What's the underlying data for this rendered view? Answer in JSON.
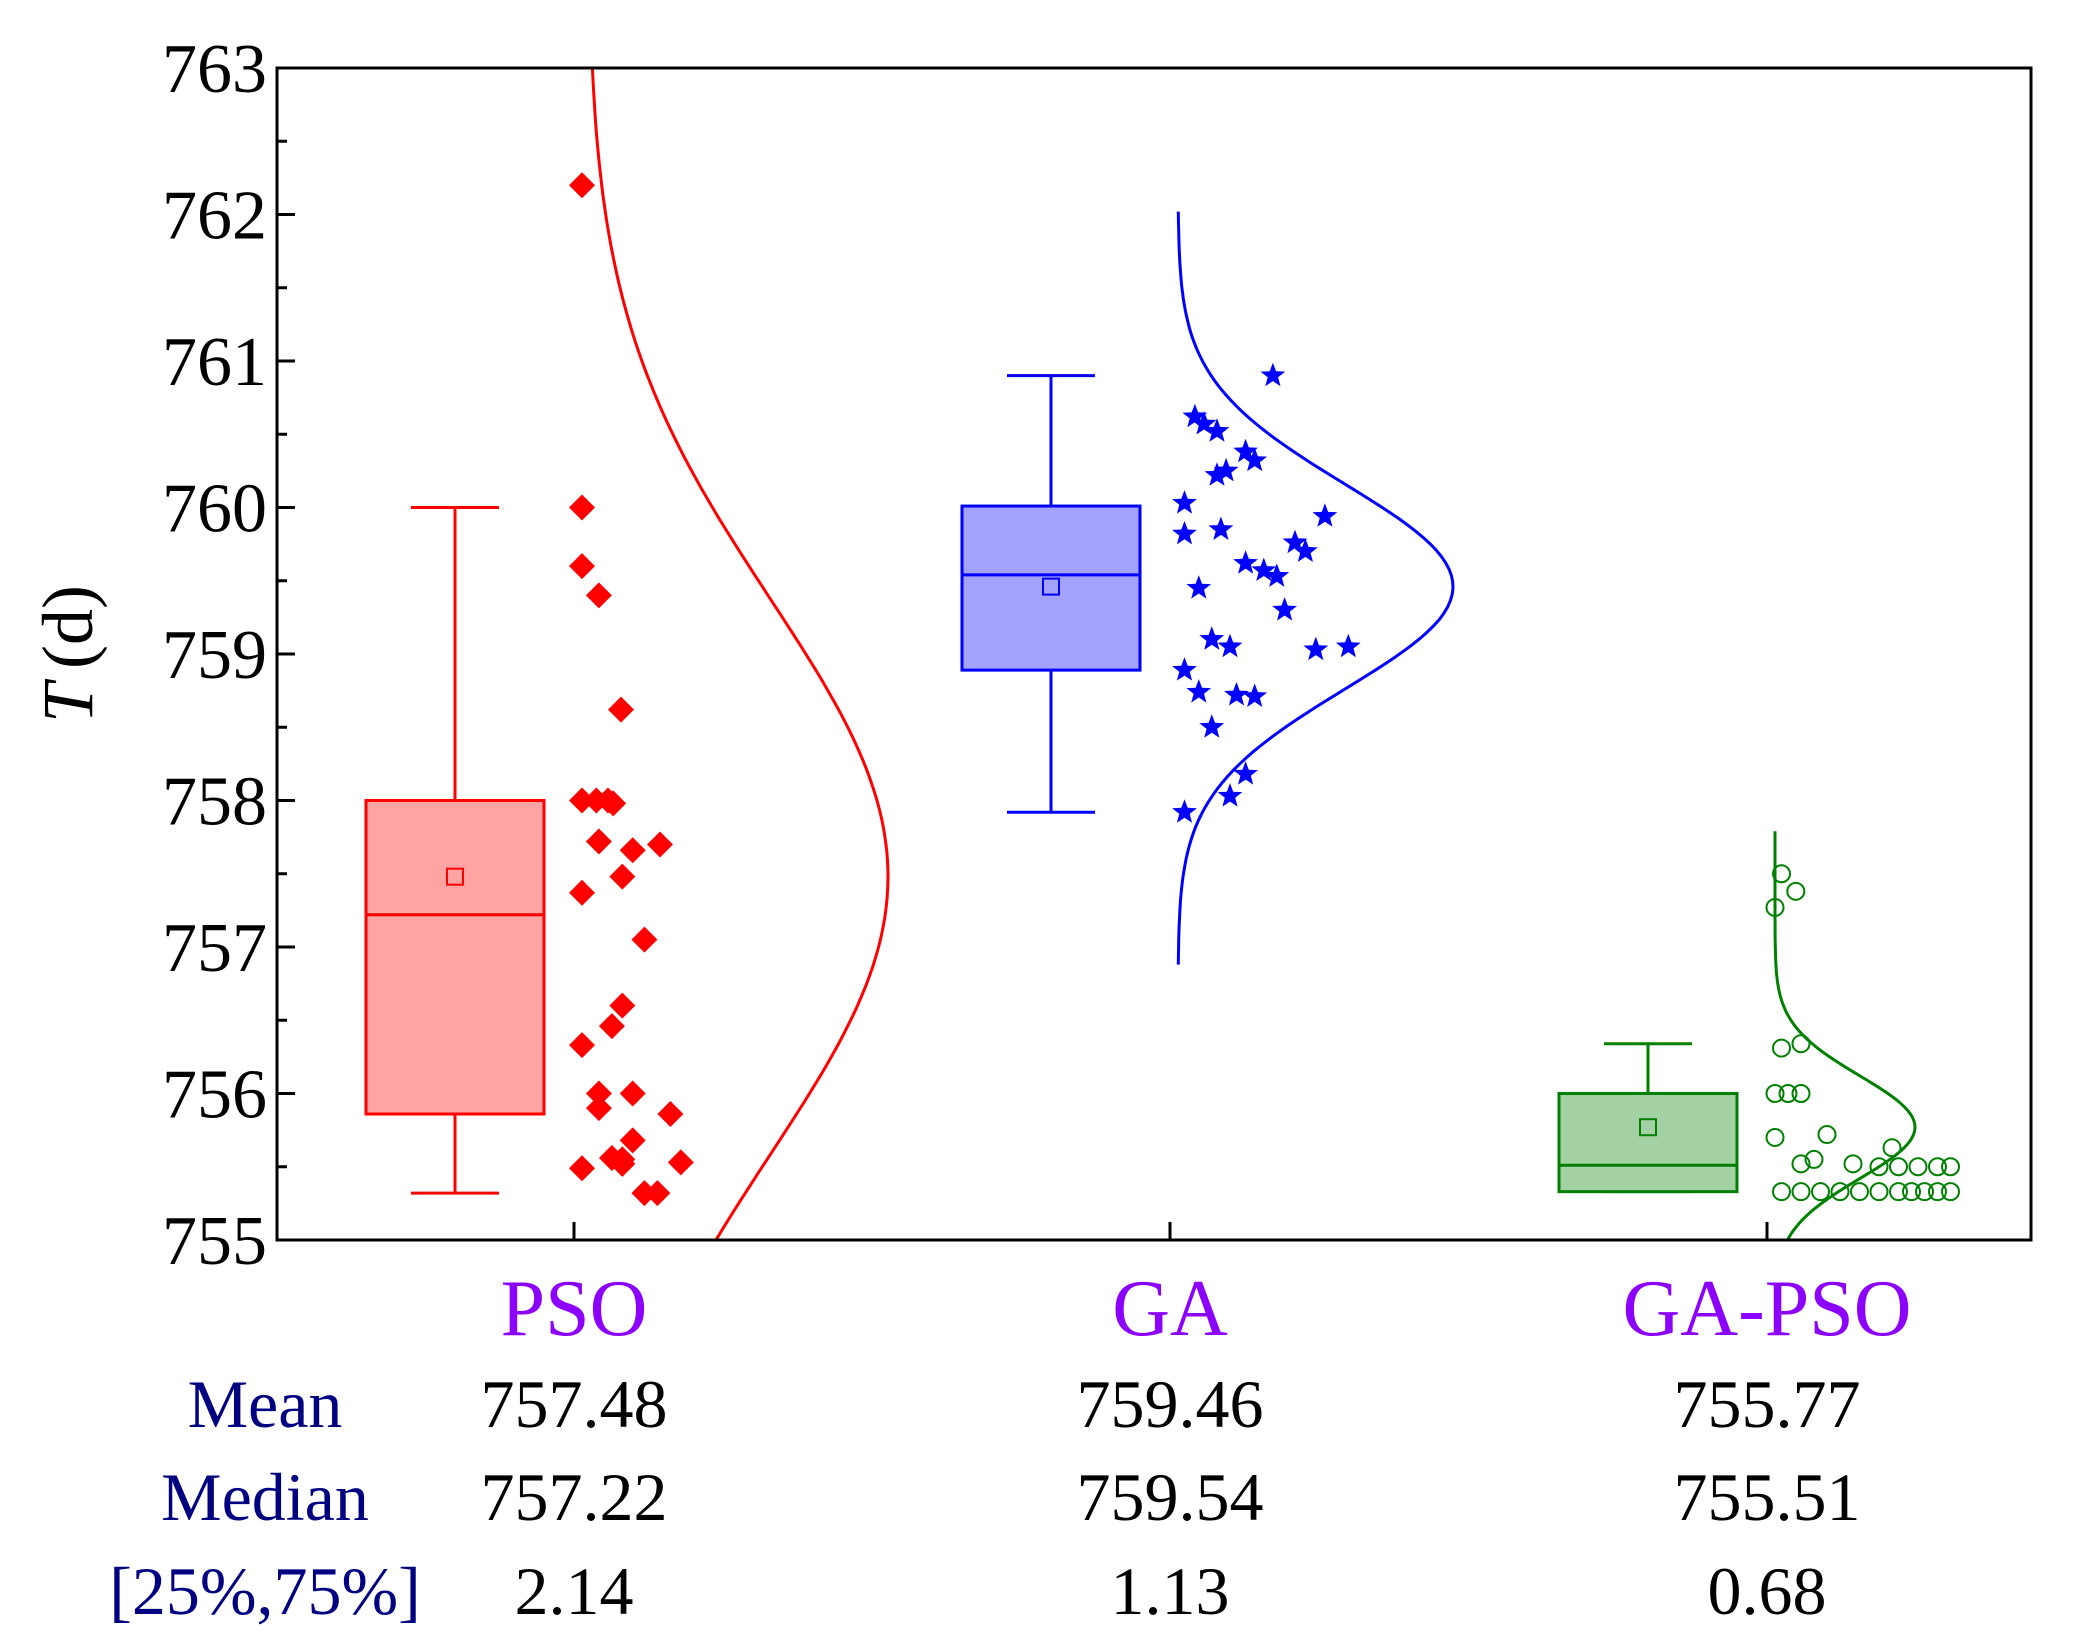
{
  "chart_data": {
    "type": "box",
    "ylabel": "T (d)",
    "ylabel_italic": "T",
    "ylabel_unit": "(d)",
    "ylim": [
      755,
      763
    ],
    "yticks": [
      "755",
      "756",
      "757",
      "758",
      "759",
      "760",
      "761",
      "762",
      "763"
    ],
    "categories": [
      "PSO",
      "GA",
      "GA-PSO"
    ],
    "category_color": "#8b00ff",
    "series": [
      {
        "name": "PSO",
        "color": "#ff0000",
        "fill": "#ffa3a3",
        "marker": "diamond",
        "whisker_low": 755.32,
        "q1": 755.86,
        "median": 757.22,
        "q3": 758.0,
        "whisker_high": 760.0,
        "mean": 757.48,
        "sd": 1.9,
        "curve_range": [
          755,
          763
        ],
        "points": [
          762.2,
          760.0,
          759.6,
          759.4,
          758.62,
          758.0,
          758.0,
          758.0,
          757.98,
          757.72,
          757.7,
          757.66,
          757.48,
          757.37,
          757.05,
          756.6,
          756.46,
          756.33,
          756.0,
          756.0,
          755.9,
          755.86,
          755.68,
          755.56,
          755.55,
          755.53,
          755.52,
          755.49,
          755.32,
          755.32
        ],
        "jitter": [
          0.0,
          0.0,
          0.0,
          0.13,
          0.3,
          0.0,
          0.11,
          0.2,
          0.24,
          0.13,
          0.6,
          0.39,
          0.31,
          0.0,
          0.48,
          0.31,
          0.23,
          0.0,
          0.13,
          0.39,
          0.13,
          0.68,
          0.39,
          0.23,
          0.31,
          0.76,
          0.31,
          0.0,
          0.48,
          0.58
        ]
      },
      {
        "name": "GA",
        "color": "#0000ff",
        "fill": "#a3a3ff",
        "marker": "star",
        "whisker_low": 757.92,
        "q1": 758.89,
        "median": 759.54,
        "q3": 760.01,
        "whisker_high": 760.9,
        "mean": 759.46,
        "sd": 0.7,
        "curve_range": [
          756.88,
          762.02
        ],
        "points": [
          760.9,
          760.62,
          760.57,
          760.52,
          760.38,
          760.32,
          760.25,
          760.22,
          760.03,
          759.94,
          759.85,
          759.82,
          759.76,
          759.7,
          759.62,
          759.57,
          759.53,
          759.45,
          759.3,
          759.1,
          759.05,
          759.05,
          759.03,
          758.89,
          758.74,
          758.72,
          758.71,
          758.5,
          758.18,
          758.03,
          757.92
        ],
        "jitter": [
          0.73,
          0.13,
          0.2,
          0.3,
          0.52,
          0.59,
          0.37,
          0.3,
          0.05,
          1.13,
          0.33,
          0.05,
          0.9,
          0.98,
          0.52,
          0.66,
          0.76,
          0.16,
          0.82,
          0.26,
          1.31,
          0.4,
          1.06,
          0.05,
          0.16,
          0.45,
          0.59,
          0.26,
          0.52,
          0.4,
          0.05
        ]
      },
      {
        "name": "GA-PSO",
        "color": "#008000",
        "fill": "#a3d1a3",
        "marker": "circle",
        "whisker_low": 755.33,
        "q1": 755.33,
        "median": 755.51,
        "q3": 756.0,
        "whisker_high": 756.34,
        "mean": 755.77,
        "sd": 0.35,
        "curve_range": [
          755.0,
          757.79
        ],
        "points": [
          757.5,
          757.38,
          757.27,
          756.34,
          756.31,
          756.0,
          756.0,
          756.0,
          755.72,
          755.7,
          755.63,
          755.55,
          755.52,
          755.52,
          755.5,
          755.5,
          755.5,
          755.5,
          755.5,
          755.33,
          755.33,
          755.33,
          755.33,
          755.33,
          755.33,
          755.33,
          755.33,
          755.33,
          755.33,
          755.33
        ],
        "jitter": [
          0.05,
          0.16,
          0.0,
          0.2,
          0.05,
          0.0,
          0.1,
          0.2,
          0.4,
          0.0,
          0.9,
          0.3,
          0.2,
          0.6,
          0.8,
          0.95,
          1.1,
          1.25,
          1.35,
          0.05,
          0.2,
          0.35,
          0.5,
          0.65,
          0.8,
          0.95,
          1.05,
          1.15,
          1.25,
          1.35
        ]
      }
    ],
    "stats_table": {
      "label_color": "#000080",
      "rows": [
        {
          "label": "Mean",
          "values": [
            "757.48",
            "759.46",
            "755.77"
          ]
        },
        {
          "label": "Median",
          "values": [
            "757.22",
            "759.54",
            "755.51"
          ]
        },
        {
          "label": "[25%,75%]",
          "values": [
            "2.14",
            "1.13",
            "0.68"
          ]
        }
      ]
    }
  }
}
